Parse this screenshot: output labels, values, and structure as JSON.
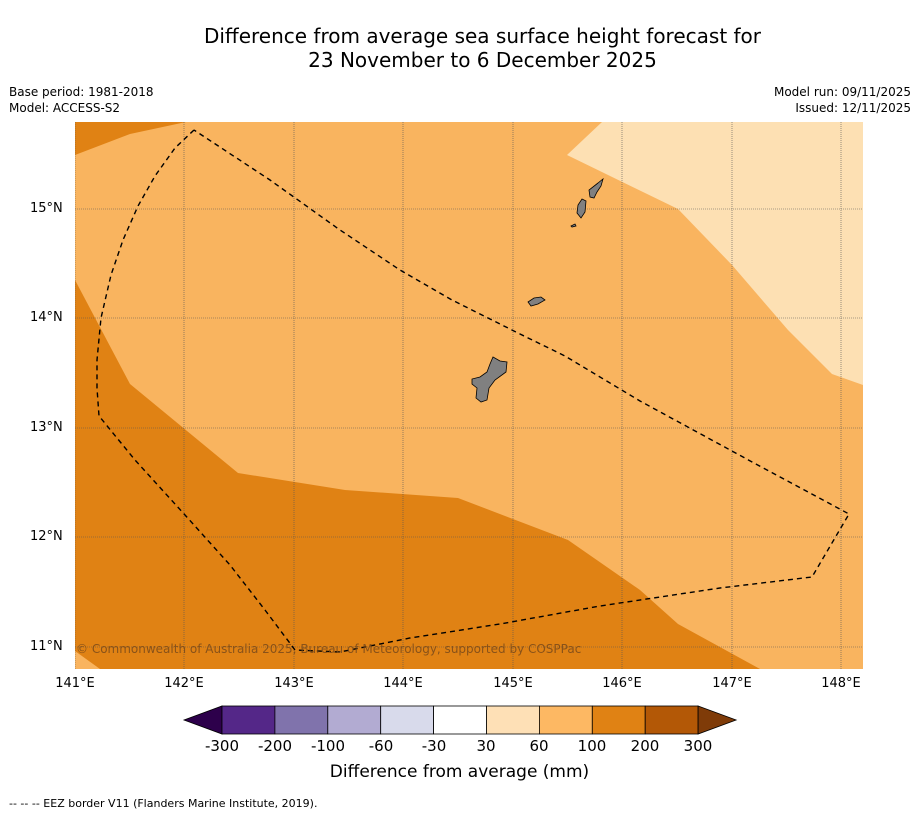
{
  "title_line1": "Difference from average sea surface height forecast for",
  "title_line2": "23 November to 6 December 2025",
  "meta": {
    "base_period": "Base period: 1981-2018",
    "model": "Model: ACCESS-S2",
    "model_run": "Model run: 09/11/2025",
    "issued": "Issued: 12/11/2025"
  },
  "map": {
    "lat_labels": [
      "15°N",
      "14°N",
      "13°N",
      "12°N",
      "11°N"
    ],
    "lon_labels": [
      "141°E",
      "142°E",
      "143°E",
      "144°E",
      "145°E",
      "146°E",
      "147°E",
      "148°E"
    ],
    "copyright": "© Commonwealth of Australia 2025, Bureau of Meteorology, supported by COSPPac",
    "colors": {
      "band_30_60": "#fde0b3",
      "band_60_100": "#f9b45f",
      "band_100_200": "#e08214",
      "land": "#808080",
      "grid": "#555555"
    }
  },
  "colorbar": {
    "ticks": [
      "-300",
      "-200",
      "-100",
      "-60",
      "-30",
      "30",
      "60",
      "100",
      "200",
      "300"
    ],
    "colors": [
      "#2d004b",
      "#542788",
      "#8073ac",
      "#b2abd2",
      "#d8daeb",
      "#ffffff",
      "#fee0b6",
      "#fdb863",
      "#e08214",
      "#b35806",
      "#7f3b08"
    ],
    "title": "Difference from average (mm)"
  },
  "footnote": "--  --  -- EEZ border V11 (Flanders Marine Institute, 2019)."
}
